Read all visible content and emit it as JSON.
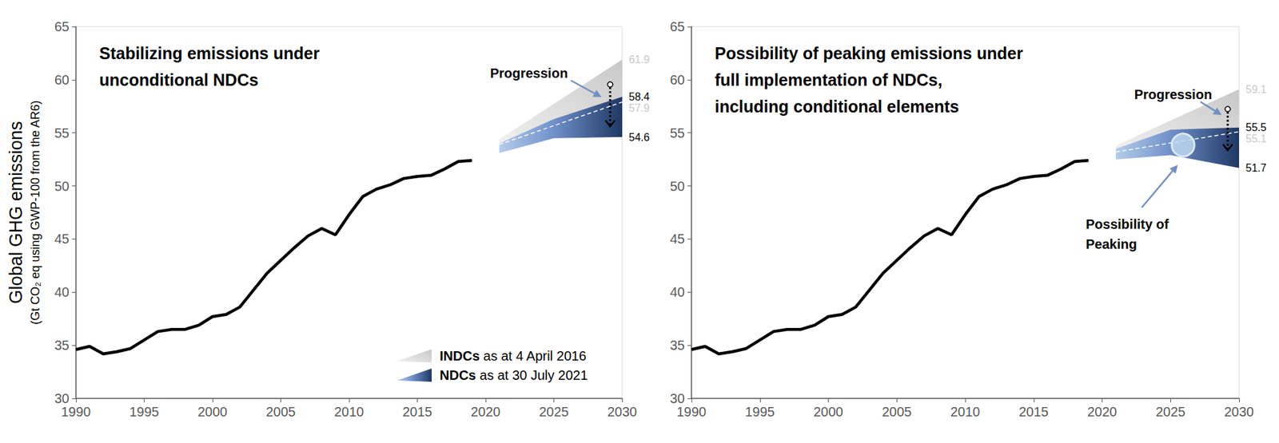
{
  "chart_data": [
    {
      "type": "line",
      "title": "Stabilizing emissions under\nunconditional NDCs",
      "ylabel": "Global GHG emissions",
      "ylabel_note": "(Gt CO₂ eq using GWP-100 from the AR6)",
      "xlim": [
        1990,
        2030
      ],
      "xticks": [
        1990,
        1995,
        2000,
        2005,
        2010,
        2015,
        2020,
        2025,
        2030
      ],
      "ylim": [
        30,
        65
      ],
      "yticks": [
        30,
        35,
        40,
        45,
        50,
        55,
        60,
        65
      ],
      "grid": false,
      "legend": "lower right",
      "annotations": {
        "progression": "Progression"
      },
      "series": [
        {
          "type": "line",
          "color": "#000000",
          "x": [
            1990,
            1991,
            1992,
            1993,
            1994,
            1995,
            1996,
            1997,
            1998,
            1999,
            2000,
            2001,
            2002,
            2003,
            2004,
            2005,
            2006,
            2007,
            2008,
            2009,
            2010,
            2011,
            2012,
            2013,
            2014,
            2015,
            2016,
            2017,
            2018,
            2019
          ],
          "values": [
            34.6,
            34.9,
            34.2,
            34.4,
            34.7,
            35.5,
            36.3,
            36.5,
            36.5,
            36.9,
            37.7,
            37.9,
            38.6,
            40.2,
            41.8,
            43.0,
            44.2,
            45.3,
            46.0,
            45.4,
            47.3,
            49.0,
            49.7,
            50.1,
            50.7,
            50.9,
            51.0,
            51.6,
            52.3,
            52.4
          ]
        },
        {
          "name": "INDCs as at 4 April 2016",
          "type": "band",
          "color": "#c8c8c8",
          "line_style": "dashed",
          "data_labels": true,
          "x": [
            2021,
            2030
          ],
          "lower": [
            53.9,
            57.9
          ],
          "upper": [
            54.4,
            61.9
          ]
        },
        {
          "name": "NDCs as at 30 July 2021",
          "type": "band",
          "color": "#1f3864",
          "data_labels": true,
          "x": [
            2021,
            2025,
            2030
          ],
          "lower": [
            53.1,
            54.5,
            54.6
          ],
          "upper": [
            54.0,
            56.3,
            58.4
          ]
        }
      ]
    },
    {
      "type": "line",
      "title": "Possibility of peaking emissions under\nfull implementation of NDCs,\nincluding conditional elements",
      "xlim": [
        1990,
        2030
      ],
      "xticks": [
        1990,
        1995,
        2000,
        2005,
        2010,
        2015,
        2020,
        2025,
        2030
      ],
      "ylim": [
        30,
        65
      ],
      "yticks": [
        30,
        35,
        40,
        45,
        50,
        55,
        60,
        65
      ],
      "grid": false,
      "annotations": {
        "progression": "Progression",
        "peaking": "Possibility of\nPeaking"
      },
      "series": [
        {
          "type": "line",
          "color": "#000000",
          "x": [
            1990,
            1991,
            1992,
            1993,
            1994,
            1995,
            1996,
            1997,
            1998,
            1999,
            2000,
            2001,
            2002,
            2003,
            2004,
            2005,
            2006,
            2007,
            2008,
            2009,
            2010,
            2011,
            2012,
            2013,
            2014,
            2015,
            2016,
            2017,
            2018,
            2019
          ],
          "values": [
            34.6,
            34.9,
            34.2,
            34.4,
            34.7,
            35.5,
            36.3,
            36.5,
            36.5,
            36.9,
            37.7,
            37.9,
            38.6,
            40.2,
            41.8,
            43.0,
            44.2,
            45.3,
            46.0,
            45.4,
            47.3,
            49.0,
            49.7,
            50.1,
            50.7,
            50.9,
            51.0,
            51.6,
            52.3,
            52.4
          ]
        },
        {
          "name": "INDCs as at 4 April 2016",
          "type": "band",
          "color": "#c8c8c8",
          "line_style": "dashed",
          "data_labels": true,
          "x": [
            2021,
            2030
          ],
          "lower": [
            53.2,
            55.1
          ],
          "upper": [
            53.8,
            59.1
          ]
        },
        {
          "name": "NDCs as at 30 July 2021",
          "type": "band",
          "color": "#1f3864",
          "data_labels": true,
          "x": [
            2021,
            2025,
            2030
          ],
          "lower": [
            52.5,
            52.9,
            51.7
          ],
          "upper": [
            53.5,
            55.3,
            55.5
          ]
        }
      ]
    }
  ]
}
